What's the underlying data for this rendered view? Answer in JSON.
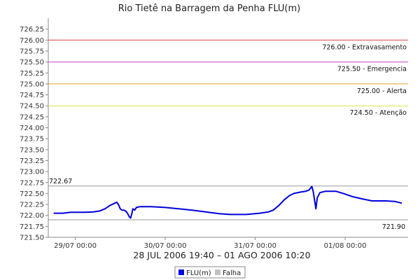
{
  "chart_data": {
    "type": "line",
    "title": "Rio Tietê na Barragem da Penha FLU(m)",
    "xlabel": "28 JUL 2006 19:40 – 01 AGO 2006 10:20",
    "ylabel": "",
    "ylim": [
      721.5,
      726.5
    ],
    "yticks": [
      "721.50",
      "721.75",
      "722.00",
      "722.25",
      "722.50",
      "722.75",
      "723.00",
      "723.25",
      "723.50",
      "723.75",
      "724.00",
      "724.25",
      "724.50",
      "724.75",
      "725.00",
      "725.25",
      "725.50",
      "725.75",
      "726.00",
      "726.25"
    ],
    "xlim": [
      -0.3,
      3.7
    ],
    "xticks": [
      {
        "x": 0,
        "label": "29/07 00:00"
      },
      {
        "x": 1,
        "label": "30/07 00:00"
      },
      {
        "x": 2,
        "label": "31/07 00:00"
      },
      {
        "x": 3,
        "label": "01/08 00:00"
      }
    ],
    "grid": false,
    "legend_position": "bottom-center",
    "thresholds": [
      {
        "value": 726.0,
        "label": "726.00 - Extravasamento",
        "color": "#d34545"
      },
      {
        "value": 725.5,
        "label": "725.50 - Emergencia",
        "color": "#cc44cc"
      },
      {
        "value": 725.0,
        "label": "725.00 - Alerta",
        "color": "#e0a030"
      },
      {
        "value": 724.5,
        "label": "724.50 - Atenção",
        "color": "#e0e040"
      }
    ],
    "references": [
      {
        "value": 722.67,
        "label": "722.67",
        "color": "#9a9a9a",
        "label_side": "left"
      },
      {
        "value": 721.9,
        "label": "721.90",
        "color": "#9a9a9a",
        "label_side": "right"
      }
    ],
    "series": [
      {
        "name": "FLU(m)",
        "color": "#0000dd",
        "points": [
          [
            -0.24,
            722.05
          ],
          [
            -0.14,
            722.05
          ],
          [
            -0.05,
            722.07
          ],
          [
            0.1,
            722.07
          ],
          [
            0.2,
            722.08
          ],
          [
            0.27,
            722.1
          ],
          [
            0.33,
            722.15
          ],
          [
            0.38,
            722.22
          ],
          [
            0.43,
            722.27
          ],
          [
            0.46,
            722.3
          ],
          [
            0.48,
            722.25
          ],
          [
            0.5,
            722.15
          ],
          [
            0.52,
            722.12
          ],
          [
            0.54,
            722.12
          ],
          [
            0.56,
            722.1
          ],
          [
            0.58,
            722.05
          ],
          [
            0.6,
            721.97
          ],
          [
            0.615,
            721.94
          ],
          [
            0.63,
            722.05
          ],
          [
            0.64,
            722.15
          ],
          [
            0.66,
            722.12
          ],
          [
            0.68,
            722.18
          ],
          [
            0.72,
            722.2
          ],
          [
            0.85,
            722.2
          ],
          [
            1.0,
            722.18
          ],
          [
            1.15,
            722.15
          ],
          [
            1.3,
            722.12
          ],
          [
            1.45,
            722.08
          ],
          [
            1.6,
            722.04
          ],
          [
            1.72,
            722.02
          ],
          [
            1.9,
            722.02
          ],
          [
            2.05,
            722.05
          ],
          [
            2.15,
            722.08
          ],
          [
            2.2,
            722.12
          ],
          [
            2.26,
            722.22
          ],
          [
            2.32,
            722.35
          ],
          [
            2.38,
            722.45
          ],
          [
            2.43,
            722.5
          ],
          [
            2.5,
            722.53
          ],
          [
            2.56,
            722.55
          ],
          [
            2.6,
            722.58
          ],
          [
            2.63,
            722.66
          ],
          [
            2.645,
            722.55
          ],
          [
            2.66,
            722.35
          ],
          [
            2.675,
            722.15
          ],
          [
            2.69,
            722.4
          ],
          [
            2.72,
            722.52
          ],
          [
            2.78,
            722.55
          ],
          [
            2.9,
            722.55
          ],
          [
            2.98,
            722.5
          ],
          [
            3.08,
            722.43
          ],
          [
            3.18,
            722.38
          ],
          [
            3.3,
            722.33
          ],
          [
            3.45,
            722.33
          ],
          [
            3.55,
            722.32
          ],
          [
            3.63,
            722.28
          ]
        ]
      }
    ],
    "legend": [
      {
        "name": "FLU(m)",
        "color": "#0000dd"
      },
      {
        "name": "Falha",
        "color": "#c0c0c0"
      }
    ]
  }
}
